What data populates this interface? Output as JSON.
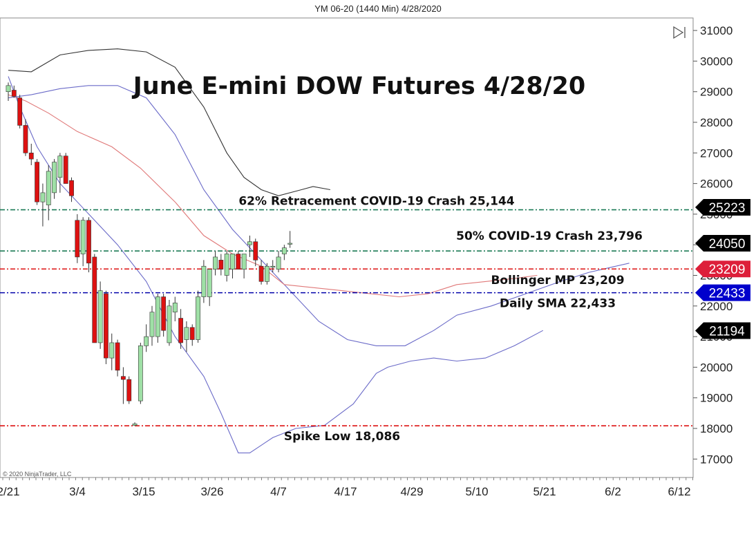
{
  "header": {
    "instrument_label": "YM 06-20 (1440 Min)  4/28/2020"
  },
  "copyright": "© 2020 NinjaTrader, LLC",
  "chart_data": {
    "type": "candlestick",
    "title": "June E-mini DOW Futures 4/28/20",
    "ylim": [
      16500,
      31400
    ],
    "y_ticks": [
      17000,
      18000,
      19000,
      20000,
      21000,
      22000,
      23000,
      24000,
      25000,
      26000,
      27000,
      28000,
      29000,
      30000,
      31000
    ],
    "x_ticks": [
      "2/21",
      "3/4",
      "3/15",
      "3/26",
      "4/7",
      "4/17",
      "4/29",
      "5/10",
      "5/21",
      "6/2",
      "6/12"
    ],
    "grid": false,
    "colors": {
      "up": "#9fe0a6",
      "down": "#dd1111",
      "wick": "#333333"
    },
    "candles": [
      {
        "date": "2/21",
        "open": 29000,
        "high": 29300,
        "low": 28700,
        "close": 29200
      },
      {
        "date": "2/24",
        "open": 29050,
        "high": 29200,
        "low": 28800,
        "close": 28850
      },
      {
        "date": "2/25",
        "open": 28800,
        "high": 28900,
        "low": 27800,
        "close": 27900
      },
      {
        "date": "2/26",
        "open": 27900,
        "high": 28100,
        "low": 26900,
        "close": 27000
      },
      {
        "date": "2/27",
        "open": 27000,
        "high": 27300,
        "low": 26600,
        "close": 26800
      },
      {
        "date": "2/28",
        "open": 26700,
        "high": 26800,
        "low": 25300,
        "close": 25400
      },
      {
        "date": "3/2",
        "open": 25400,
        "high": 26000,
        "low": 24600,
        "close": 25700
      },
      {
        "date": "3/3",
        "open": 25300,
        "high": 26600,
        "low": 24800,
        "close": 26400
      },
      {
        "date": "3/4",
        "open": 25700,
        "high": 26800,
        "low": 25500,
        "close": 26700
      },
      {
        "date": "3/5",
        "open": 26200,
        "high": 27000,
        "low": 25700,
        "close": 26900
      },
      {
        "date": "3/6",
        "open": 26900,
        "high": 27000,
        "low": 26000,
        "close": 26000
      },
      {
        "date": "3/9",
        "open": 26100,
        "high": 26200,
        "low": 25400,
        "close": 25600
      },
      {
        "date": "3/10",
        "open": 24800,
        "high": 25000,
        "low": 23400,
        "close": 23600
      },
      {
        "date": "3/11",
        "open": 23700,
        "high": 24900,
        "low": 23300,
        "close": 24800
      },
      {
        "date": "3/12",
        "open": 24800,
        "high": 24900,
        "low": 23100,
        "close": 23400
      },
      {
        "date": "3/13",
        "open": 23600,
        "high": 23700,
        "low": 20800,
        "close": 20800
      },
      {
        "date": "3/16",
        "open": 20800,
        "high": 22800,
        "low": 20600,
        "close": 22500
      },
      {
        "date": "3/17",
        "open": 22400,
        "high": 22500,
        "low": 20100,
        "close": 20300
      },
      {
        "date": "3/18",
        "open": 20300,
        "high": 21100,
        "low": 19900,
        "close": 20800
      },
      {
        "date": "3/19",
        "open": 20800,
        "high": 20900,
        "low": 19700,
        "close": 19900
      },
      {
        "date": "3/20",
        "open": 19700,
        "high": 20000,
        "low": 18800,
        "close": 19600
      },
      {
        "date": "3/23",
        "open": 19600,
        "high": 19700,
        "low": 18800,
        "close": 18900
      },
      {
        "date": "3/24",
        "open": 18100,
        "high": 18200,
        "low": 18086,
        "close": 18150
      },
      {
        "date": "3/25",
        "open": 18900,
        "high": 20800,
        "low": 18800,
        "close": 20700
      },
      {
        "date": "3/26",
        "open": 20700,
        "high": 21400,
        "low": 20500,
        "close": 21000
      },
      {
        "date": "3/27",
        "open": 21000,
        "high": 22000,
        "low": 20700,
        "close": 21800
      },
      {
        "date": "3/30",
        "open": 21000,
        "high": 22400,
        "low": 20800,
        "close": 22300
      },
      {
        "date": "3/31",
        "open": 22300,
        "high": 22400,
        "low": 21000,
        "close": 21200
      },
      {
        "date": "4/1",
        "open": 20800,
        "high": 22200,
        "low": 20700,
        "close": 22000
      },
      {
        "date": "4/2",
        "open": 21800,
        "high": 22300,
        "low": 21500,
        "close": 22100
      },
      {
        "date": "4/3",
        "open": 21600,
        "high": 21900,
        "low": 20600,
        "close": 20800
      },
      {
        "date": "4/6",
        "open": 20900,
        "high": 21500,
        "low": 20500,
        "close": 21300
      },
      {
        "date": "4/7",
        "open": 21300,
        "high": 21400,
        "low": 20700,
        "close": 20900
      },
      {
        "date": "4/8",
        "open": 20900,
        "high": 22500,
        "low": 20800,
        "close": 22300
      },
      {
        "date": "4/9",
        "open": 22300,
        "high": 23500,
        "low": 22100,
        "close": 23300
      },
      {
        "date": "4/13",
        "open": 22300,
        "high": 23200,
        "low": 22000,
        "close": 23200
      },
      {
        "date": "4/14",
        "open": 23200,
        "high": 23800,
        "low": 23000,
        "close": 23600
      },
      {
        "date": "4/15",
        "open": 23500,
        "high": 23700,
        "low": 23000,
        "close": 23200
      },
      {
        "date": "4/16",
        "open": 23000,
        "high": 23800,
        "low": 22800,
        "close": 23700
      },
      {
        "date": "4/17",
        "open": 23200,
        "high": 23700,
        "low": 22900,
        "close": 23700
      },
      {
        "date": "4/20",
        "open": 23700,
        "high": 23800,
        "low": 23200,
        "close": 23200
      },
      {
        "date": "4/21",
        "open": 23200,
        "high": 23700,
        "low": 22900,
        "close": 23700
      },
      {
        "date": "4/22",
        "open": 24000,
        "high": 24300,
        "low": 23600,
        "close": 24100
      },
      {
        "date": "4/23",
        "open": 24100,
        "high": 24200,
        "low": 23300,
        "close": 23500
      },
      {
        "date": "4/24",
        "open": 23300,
        "high": 23500,
        "low": 22700,
        "close": 22800
      },
      {
        "date": "4/27",
        "open": 22800,
        "high": 23400,
        "low": 22700,
        "close": 23300
      },
      {
        "date": "4/27b",
        "open": 23300,
        "high": 23500,
        "low": 23100,
        "close": 23300
      },
      {
        "date": "4/28",
        "open": 23200,
        "high": 23800,
        "low": 23100,
        "close": 23600
      },
      {
        "date": "4/28b",
        "open": 23700,
        "high": 24000,
        "low": 23500,
        "close": 23900
      },
      {
        "date": "4/29",
        "open": 24050,
        "high": 24450,
        "low": 23900,
        "close": 24050
      }
    ],
    "bollinger": {
      "upper_color": "#333333",
      "middle_color": "#6a6ac8",
      "inner_color": "#e07878",
      "lower_color": "#6a6ac8",
      "upper": [
        [
          0,
          29700
        ],
        [
          4,
          29650
        ],
        [
          9,
          30200
        ],
        [
          14,
          30350
        ],
        [
          19,
          30400
        ],
        [
          24,
          30300
        ],
        [
          29,
          29800
        ],
        [
          34,
          28500
        ],
        [
          38,
          27000
        ],
        [
          41,
          26200
        ],
        [
          44,
          25800
        ],
        [
          47,
          25600
        ],
        [
          51,
          25800
        ],
        [
          53,
          25900
        ],
        [
          56,
          25800
        ]
      ],
      "middle": [
        [
          0,
          28800
        ],
        [
          4,
          28900
        ],
        [
          9,
          29100
        ],
        [
          14,
          29200
        ],
        [
          19,
          29200
        ],
        [
          24,
          28800
        ],
        [
          29,
          27600
        ],
        [
          34,
          25800
        ],
        [
          39,
          24500
        ],
        [
          44,
          23500
        ],
        [
          49,
          22500
        ],
        [
          54,
          21500
        ],
        [
          59,
          20900
        ],
        [
          64,
          20700
        ],
        [
          69,
          20700
        ],
        [
          74,
          21200
        ],
        [
          78,
          21700
        ],
        [
          84,
          22000
        ],
        [
          90,
          22400
        ],
        [
          96,
          22800
        ],
        [
          101,
          23100
        ],
        [
          108,
          23400
        ]
      ],
      "inner": [
        [
          0,
          28900
        ],
        [
          3,
          28700
        ],
        [
          7,
          28300
        ],
        [
          12,
          27700
        ],
        [
          18,
          27200
        ],
        [
          23,
          26500
        ],
        [
          29,
          25400
        ],
        [
          34,
          24300
        ],
        [
          39,
          23700
        ],
        [
          44,
          23300
        ],
        [
          48,
          22700
        ],
        [
          53,
          22600
        ],
        [
          58,
          22500
        ],
        [
          63,
          22400
        ],
        [
          68,
          22300
        ],
        [
          73,
          22400
        ],
        [
          78,
          22700
        ],
        [
          83,
          22800
        ],
        [
          88,
          22900
        ],
        [
          92,
          23000
        ]
      ],
      "lower": [
        [
          0,
          29500
        ],
        [
          2,
          28500
        ],
        [
          5,
          27200
        ],
        [
          9,
          26000
        ],
        [
          14,
          25000
        ],
        [
          19,
          24000
        ],
        [
          24,
          22800
        ],
        [
          29,
          21000
        ],
        [
          34,
          19700
        ],
        [
          37,
          18500
        ],
        [
          40,
          17200
        ],
        [
          42,
          17200
        ],
        [
          46,
          17700
        ],
        [
          50,
          18000
        ],
        [
          55,
          18100
        ],
        [
          60,
          18800
        ],
        [
          64,
          19800
        ],
        [
          66,
          20000
        ],
        [
          70,
          20200
        ],
        [
          74,
          20300
        ],
        [
          78,
          20200
        ],
        [
          83,
          20300
        ],
        [
          88,
          20700
        ],
        [
          93,
          21200
        ]
      ]
    },
    "lines": [
      {
        "value": 25144,
        "label": "62% Retracement COVID-19 Crash 25,144",
        "color": "#1a7a55",
        "style": "dashdot",
        "tag": "25223",
        "tag_color": "#000000"
      },
      {
        "value": 23796,
        "label": "50% COVID-19 Crash 23,796",
        "color": "#1a7a55",
        "style": "dashdot",
        "tag": "24050",
        "tag_color": "#000000"
      },
      {
        "value": 23209,
        "label": "Bollinger MP 23,209",
        "color": "#dd1111",
        "style": "dashdot",
        "tag": "23209",
        "tag_color": "#dd1f3a"
      },
      {
        "value": 22433,
        "label": "Daily SMA 22,433",
        "color": "#0000aa",
        "style": "dashdot",
        "tag": "22433",
        "tag_color": "#0000cc"
      },
      {
        "value": 18086,
        "label": "Spike Low 18,086",
        "color": "#dd1111",
        "style": "dashdot",
        "tag": "",
        "tag_color": ""
      }
    ],
    "extra_tag": {
      "value": 21194,
      "tag": "21194",
      "tag_color": "#000000"
    }
  }
}
